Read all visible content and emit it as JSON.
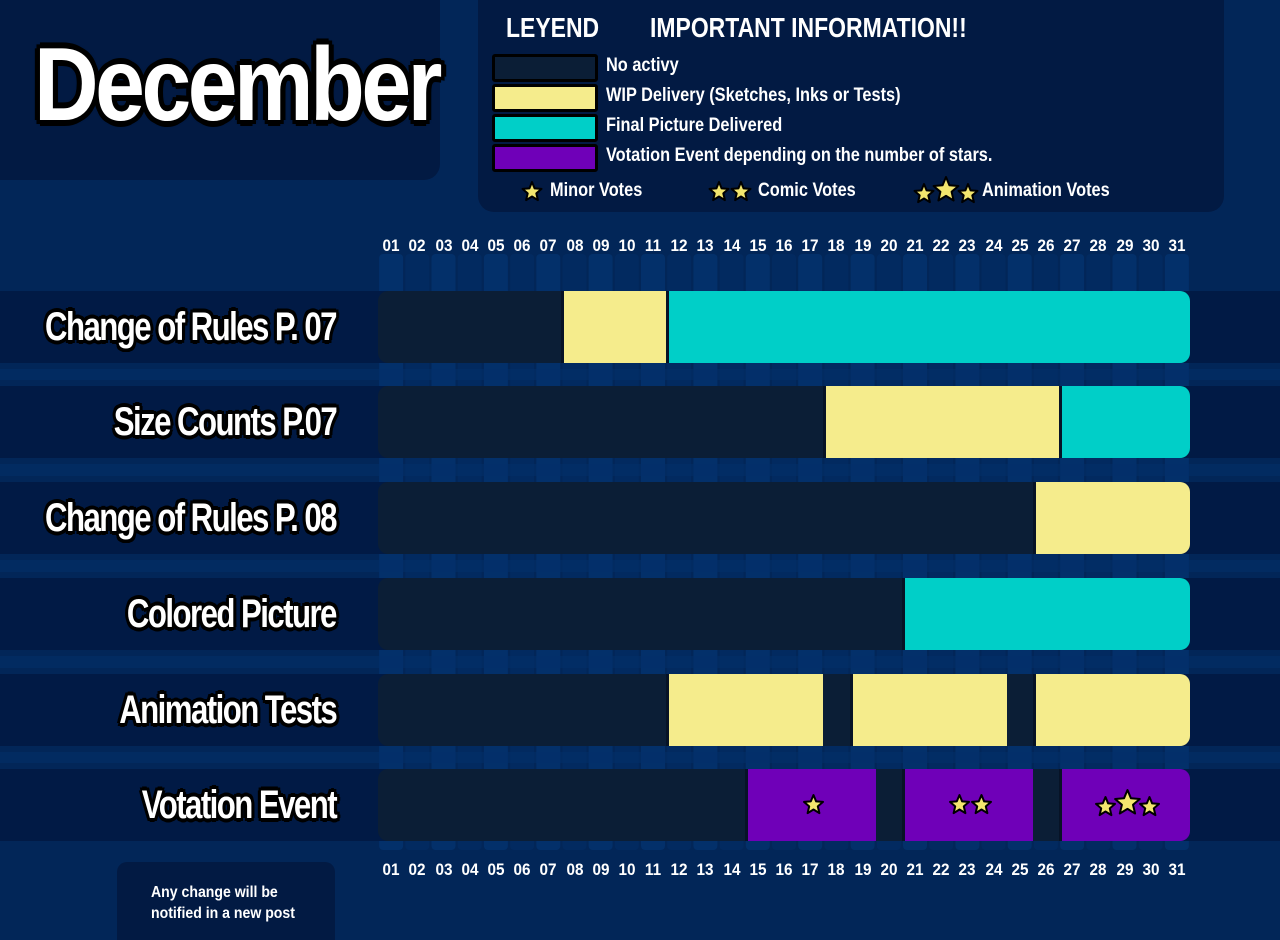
{
  "title": "December",
  "legend": {
    "heading": "LEYEND",
    "info_heading": "IMPORTANT INFORMATION!!",
    "items": [
      {
        "label": "No activy",
        "color": "#0b1e36"
      },
      {
        "label": "WIP Delivery (Sketches, Inks or Tests)",
        "color": "#f5ec8c"
      },
      {
        "label": "Final Picture Delivered",
        "color": "#00cfc8"
      },
      {
        "label": "Votation Event depending on the number of stars.",
        "color": "#6f00b8"
      }
    ],
    "votes": [
      {
        "stars": 1,
        "label": "Minor Votes"
      },
      {
        "stars": 2,
        "label": "Comic Votes"
      },
      {
        "stars": 3,
        "label": "Animation Votes"
      }
    ]
  },
  "chart_data": {
    "type": "table",
    "days": [
      "01",
      "02",
      "03",
      "04",
      "05",
      "06",
      "07",
      "08",
      "09",
      "10",
      "11",
      "12",
      "13",
      "14",
      "15",
      "16",
      "17",
      "18",
      "19",
      "20",
      "21",
      "22",
      "23",
      "24",
      "25",
      "26",
      "27",
      "28",
      "29",
      "30",
      "31"
    ],
    "rows": [
      {
        "label": "Change of Rules P. 07",
        "segments": [
          {
            "start": 8,
            "end": 11,
            "status": "wip"
          },
          {
            "start": 12,
            "end": 31,
            "status": "final"
          }
        ]
      },
      {
        "label": "Size Counts P.07",
        "segments": [
          {
            "start": 18,
            "end": 26,
            "status": "wip"
          },
          {
            "start": 27,
            "end": 31,
            "status": "final"
          }
        ]
      },
      {
        "label": "Change of Rules P. 08",
        "segments": [
          {
            "start": 26,
            "end": 31,
            "status": "wip"
          }
        ]
      },
      {
        "label": "Colored Picture",
        "segments": [
          {
            "start": 21,
            "end": 31,
            "status": "final"
          }
        ]
      },
      {
        "label": "Animation Tests",
        "segments": [
          {
            "start": 12,
            "end": 17,
            "status": "wip"
          },
          {
            "start": 19,
            "end": 24,
            "status": "wip"
          },
          {
            "start": 26,
            "end": 31,
            "status": "wip"
          }
        ]
      },
      {
        "label": "Votation  Event",
        "segments": [
          {
            "start": 15,
            "end": 19,
            "status": "vote",
            "stars": 1
          },
          {
            "start": 21,
            "end": 25,
            "status": "vote",
            "stars": 2
          },
          {
            "start": 27,
            "end": 31,
            "status": "vote",
            "stars": 3
          }
        ]
      }
    ],
    "status_colors": {
      "none": "#0b1e36",
      "wip": "#f5ec8c",
      "final": "#00cfc8",
      "vote": "#6f00b8"
    }
  },
  "note": "Any change will be notified in a new post"
}
